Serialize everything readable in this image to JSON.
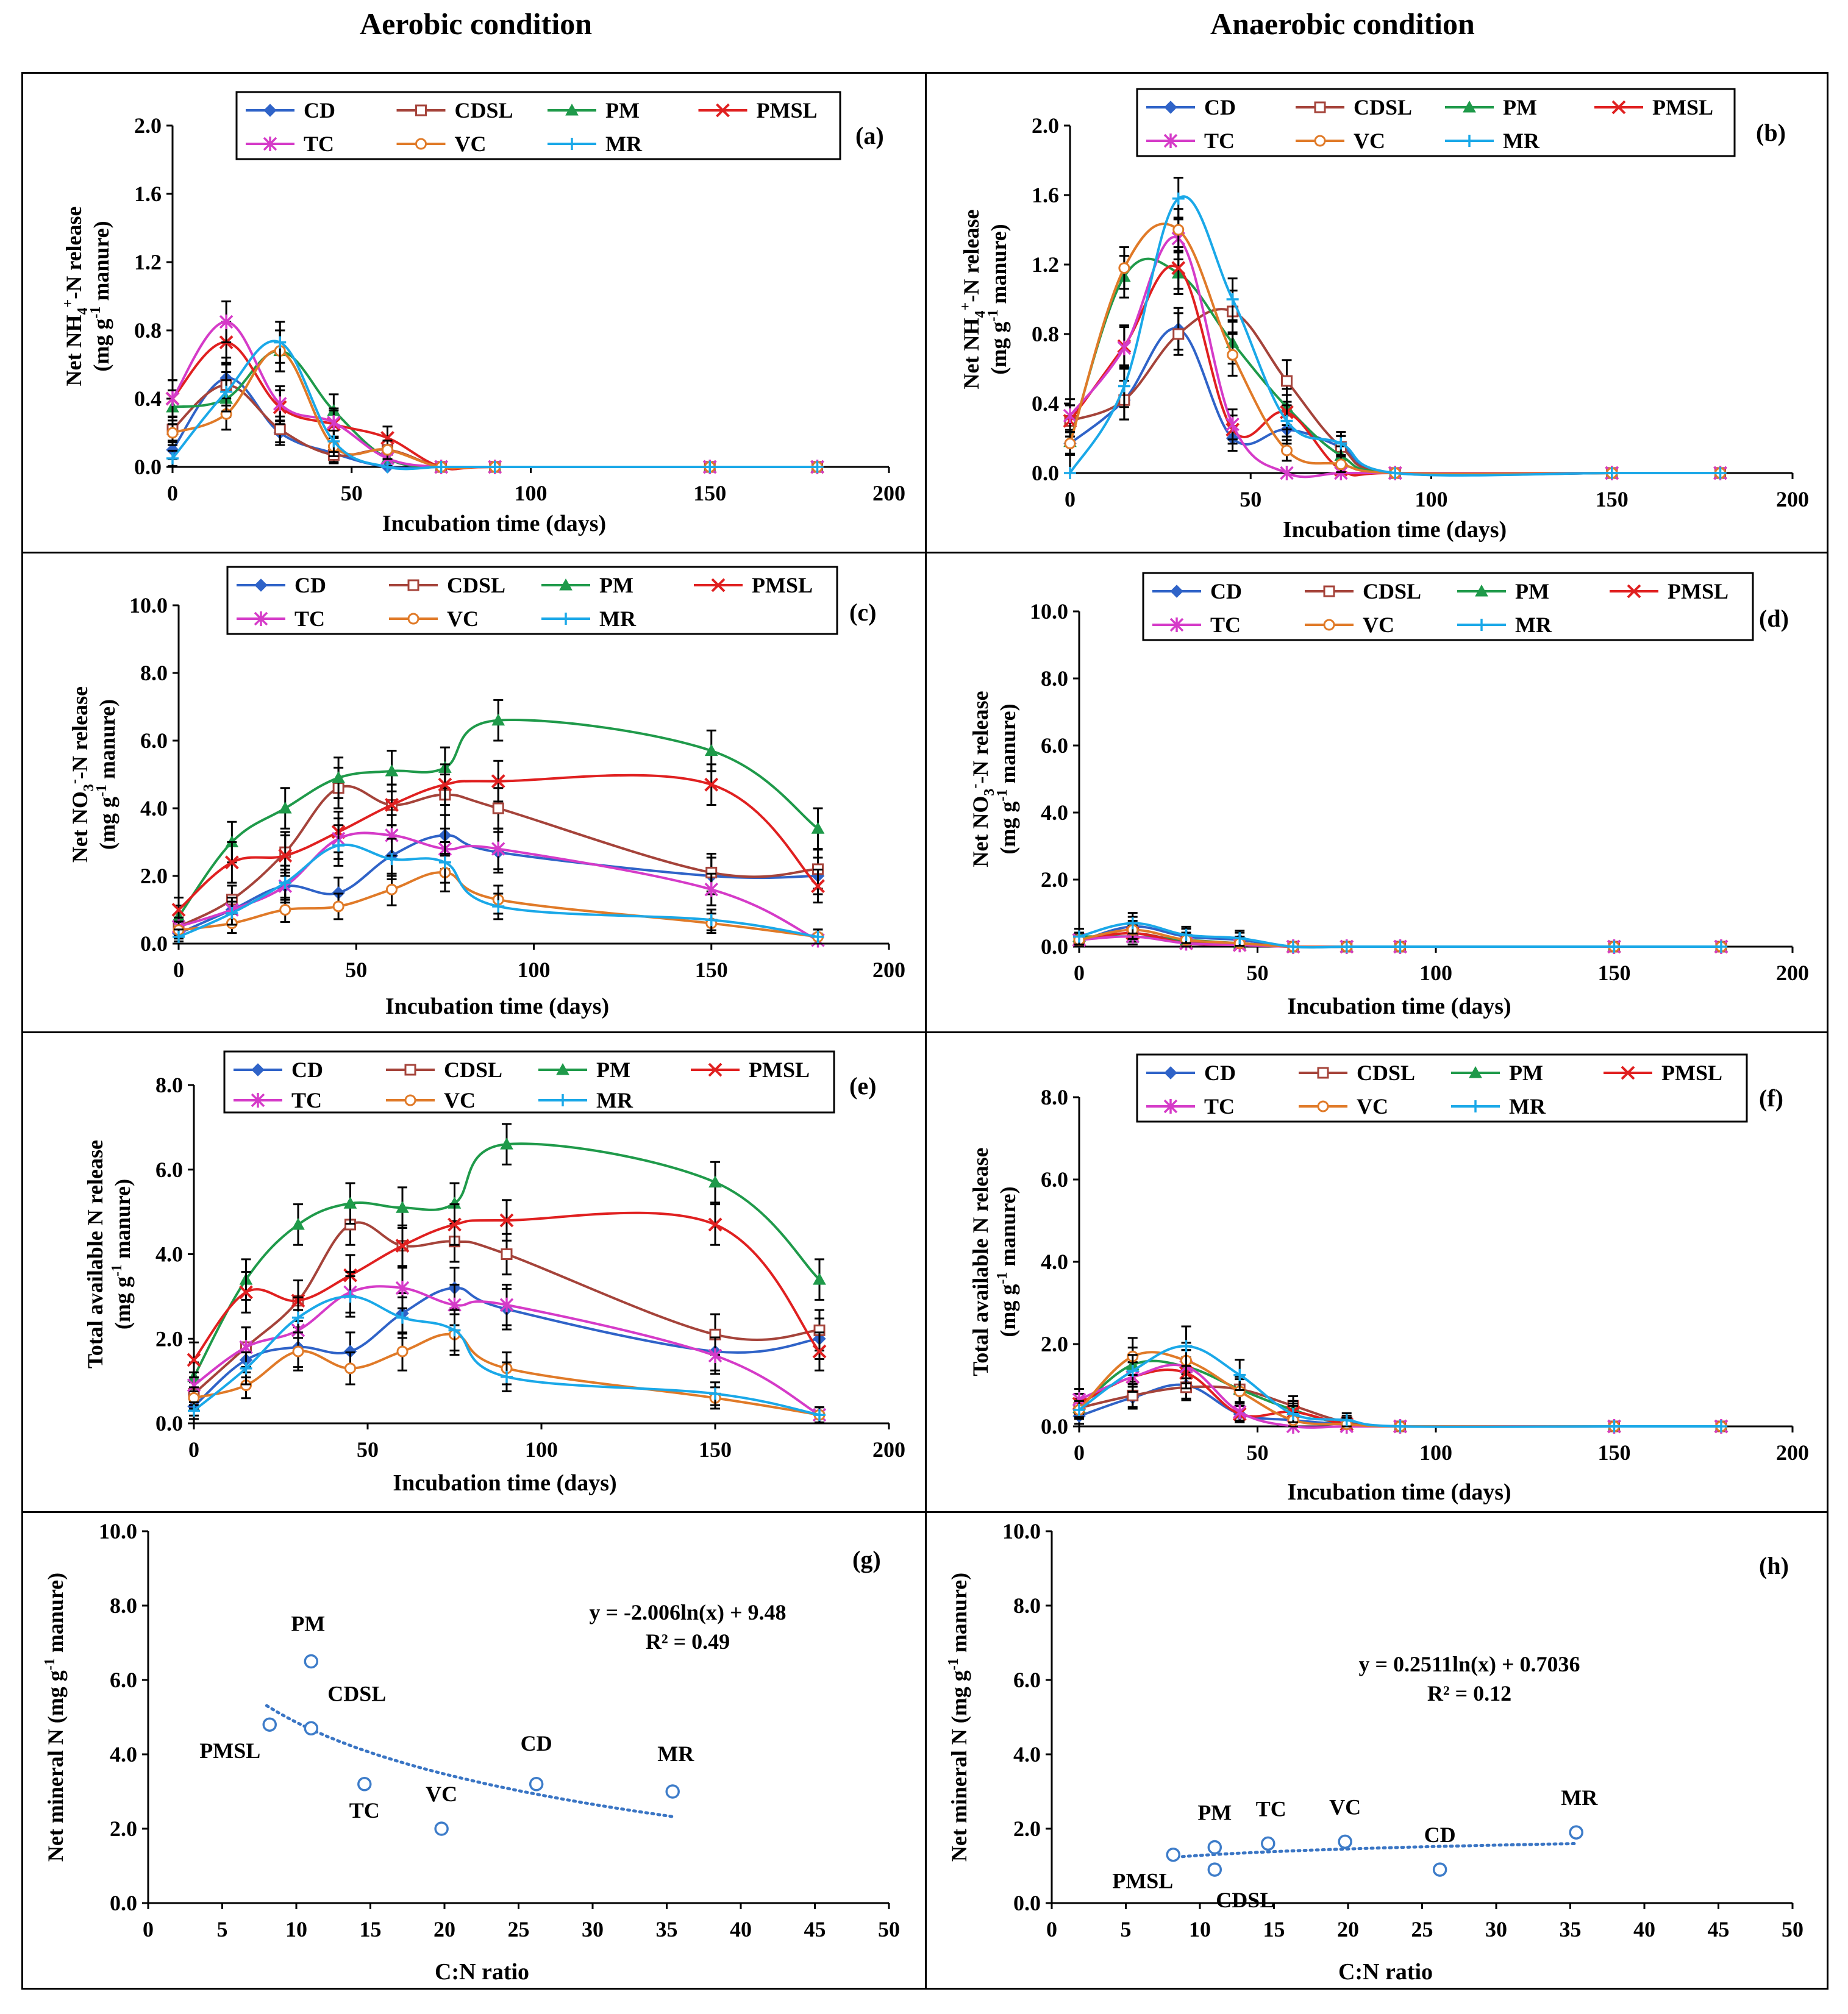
{
  "page": {
    "left_title": "Aerobic condition",
    "right_title": "Anaerobic condition"
  },
  "colors": {
    "CD": "#2f63c8",
    "CDSL": "#a5433a",
    "PM": "#1f9a4a",
    "PMSL": "#e02020",
    "TC": "#d53bc8",
    "VC": "#e07a28",
    "MR": "#1aa8e8",
    "trend": "#3a75c4",
    "points": "#3d7cc9"
  },
  "markers": {
    "CD": "diamond",
    "CDSL": "square",
    "PM": "triangle",
    "PMSL": "x",
    "TC": "star",
    "VC": "circle",
    "MR": "plus"
  },
  "chart_data": [
    {
      "id": "a",
      "panel_label": "(a)",
      "type": "line",
      "ylabel_parts": [
        "Net NH",
        "4",
        "+",
        "-N release"
      ],
      "ylabel2": "(mg g-1 manure)",
      "xlabel": "Incubation time (days)",
      "ylim": [
        0,
        2.0
      ],
      "yticks": [
        "0.0",
        "0.4",
        "0.8",
        "1.2",
        "1.6",
        "2.0"
      ],
      "xlim": [
        0,
        200
      ],
      "xticks": [
        "0",
        "50",
        "100",
        "150",
        "200"
      ],
      "x": [
        0,
        15,
        30,
        45,
        60,
        75,
        90,
        150,
        180
      ],
      "series": [
        {
          "name": "CD",
          "values": [
            0.1,
            0.52,
            0.2,
            0.08,
            0.0,
            0,
            0,
            0,
            0
          ]
        },
        {
          "name": "CDSL",
          "values": [
            0.22,
            0.48,
            0.22,
            0.07,
            0.1,
            0,
            0,
            0,
            0
          ]
        },
        {
          "name": "PM",
          "values": [
            0.35,
            0.4,
            0.68,
            0.33,
            0.05,
            0,
            0,
            0,
            0
          ]
        },
        {
          "name": "PMSL",
          "values": [
            0.4,
            0.73,
            0.35,
            0.25,
            0.17,
            0,
            0,
            0,
            0
          ]
        },
        {
          "name": "TC",
          "values": [
            0.4,
            0.85,
            0.37,
            0.26,
            0.05,
            0,
            0,
            0,
            0
          ]
        },
        {
          "name": "VC",
          "values": [
            0.2,
            0.31,
            0.68,
            0.12,
            0.1,
            0,
            0,
            0,
            0
          ]
        },
        {
          "name": "MR",
          "values": [
            0.05,
            0.44,
            0.73,
            0.15,
            0.0,
            0,
            0,
            0,
            0
          ]
        }
      ]
    },
    {
      "id": "b",
      "panel_label": "(b)",
      "type": "line",
      "ylabel_parts": [
        "Net NH",
        "4",
        "+",
        "-N release"
      ],
      "ylabel2": "(mg g-1 manure)",
      "xlabel": "Incubation time (days)",
      "ylim": [
        0,
        2.0
      ],
      "yticks": [
        "0.0",
        "0.4",
        "0.8",
        "1.2",
        "1.6",
        "2.0"
      ],
      "xlim": [
        0,
        200
      ],
      "xticks": [
        "0",
        "50",
        "100",
        "150",
        "200"
      ],
      "x": [
        0,
        15,
        30,
        45,
        60,
        75,
        90,
        150,
        180
      ],
      "series": [
        {
          "name": "CD",
          "values": [
            0.17,
            0.42,
            0.83,
            0.2,
            0.25,
            0.15,
            0,
            0,
            0
          ]
        },
        {
          "name": "CDSL",
          "values": [
            0.3,
            0.42,
            0.8,
            0.93,
            0.53,
            0.15,
            0,
            0,
            0
          ]
        },
        {
          "name": "PM",
          "values": [
            0.18,
            1.13,
            1.15,
            0.75,
            0.38,
            0.1,
            0,
            0,
            0
          ]
        },
        {
          "name": "PMSL",
          "values": [
            0.3,
            0.73,
            1.18,
            0.25,
            0.35,
            0.02,
            0,
            0,
            0
          ]
        },
        {
          "name": "TC",
          "values": [
            0.33,
            0.72,
            1.35,
            0.28,
            0.0,
            0,
            0,
            0,
            0
          ]
        },
        {
          "name": "VC",
          "values": [
            0.17,
            1.18,
            1.4,
            0.68,
            0.13,
            0.05,
            0,
            0,
            0
          ]
        },
        {
          "name": "MR",
          "values": [
            0.0,
            0.5,
            1.58,
            1.0,
            0.3,
            0.17,
            0,
            0,
            0
          ]
        }
      ]
    },
    {
      "id": "c",
      "panel_label": "(c)",
      "type": "line",
      "ylabel_parts": [
        "Net NO",
        "3",
        "-",
        "-N release"
      ],
      "ylabel2": "(mg g-1 manure)",
      "xlabel": "Incubation time (days)",
      "ylim": [
        0,
        10.0
      ],
      "yticks": [
        "0.0",
        "2.0",
        "4.0",
        "6.0",
        "8.0",
        "10.0"
      ],
      "xlim": [
        0,
        200
      ],
      "xticks": [
        "0",
        "50",
        "100",
        "150",
        "200"
      ],
      "x": [
        0,
        15,
        30,
        45,
        60,
        75,
        90,
        150,
        180
      ],
      "series": [
        {
          "name": "CD",
          "values": [
            0.3,
            1.0,
            1.7,
            1.5,
            2.6,
            3.2,
            2.7,
            2.0,
            2.0
          ]
        },
        {
          "name": "CDSL",
          "values": [
            0.5,
            1.3,
            2.7,
            4.6,
            4.1,
            4.4,
            4.0,
            2.1,
            2.2
          ]
        },
        {
          "name": "PM",
          "values": [
            0.8,
            3.0,
            4.0,
            4.9,
            5.1,
            5.2,
            6.6,
            5.7,
            3.4
          ]
        },
        {
          "name": "PMSL",
          "values": [
            1.0,
            2.4,
            2.6,
            3.3,
            4.1,
            4.7,
            4.8,
            4.7,
            1.7
          ]
        },
        {
          "name": "TC",
          "values": [
            0.5,
            1.0,
            1.7,
            3.1,
            3.2,
            2.8,
            2.8,
            1.6,
            0.1
          ]
        },
        {
          "name": "VC",
          "values": [
            0.4,
            0.6,
            1.0,
            1.1,
            1.6,
            2.1,
            1.3,
            0.6,
            0.2
          ]
        },
        {
          "name": "MR",
          "values": [
            0.2,
            0.9,
            1.8,
            2.9,
            2.5,
            2.4,
            1.1,
            0.7,
            0.2
          ]
        }
      ]
    },
    {
      "id": "d",
      "panel_label": "(d)",
      "type": "line",
      "ylabel_parts": [
        "Net NO",
        "3",
        "-",
        "-N release"
      ],
      "ylabel2": "(mg g-1 manure)",
      "xlabel": "Incubation time (days)",
      "ylim": [
        0,
        10.0
      ],
      "yticks": [
        "0.0",
        "2.0",
        "4.0",
        "6.0",
        "8.0",
        "10.0"
      ],
      "xlim": [
        0,
        200
      ],
      "xticks": [
        "0",
        "50",
        "100",
        "150",
        "200"
      ],
      "x": [
        0,
        15,
        30,
        45,
        60,
        75,
        90,
        150,
        180
      ],
      "series": [
        {
          "name": "CD",
          "values": [
            0.15,
            0.6,
            0.3,
            0.2,
            0,
            0,
            0,
            0,
            0
          ]
        },
        {
          "name": "CDSL",
          "values": [
            0.2,
            0.4,
            0.15,
            0.1,
            0,
            0,
            0,
            0,
            0
          ]
        },
        {
          "name": "PM",
          "values": [
            0.3,
            0.3,
            0.2,
            0.1,
            0,
            0,
            0,
            0,
            0
          ]
        },
        {
          "name": "PMSL",
          "values": [
            0.2,
            0.4,
            0.1,
            0.05,
            0,
            0,
            0,
            0,
            0
          ]
        },
        {
          "name": "TC",
          "values": [
            0.2,
            0.3,
            0.1,
            0.05,
            0,
            0,
            0,
            0,
            0
          ]
        },
        {
          "name": "VC",
          "values": [
            0.2,
            0.5,
            0.2,
            0.1,
            0,
            0,
            0,
            0,
            0
          ]
        },
        {
          "name": "MR",
          "values": [
            0.3,
            0.7,
            0.35,
            0.25,
            0,
            0,
            0,
            0,
            0
          ]
        }
      ]
    },
    {
      "id": "e",
      "panel_label": "(e)",
      "type": "line",
      "ylabel_parts": [
        "Total available N release"
      ],
      "ylabel2": "(mg g-1 manure)",
      "xlabel": "Incubation time (days)",
      "ylim": [
        0,
        8.0
      ],
      "yticks": [
        "0.0",
        "2.0",
        "4.0",
        "6.0",
        "8.0"
      ],
      "xlim": [
        0,
        200
      ],
      "xticks": [
        "0",
        "50",
        "100",
        "150",
        "200"
      ],
      "x": [
        0,
        15,
        30,
        45,
        60,
        75,
        90,
        150,
        180
      ],
      "series": [
        {
          "name": "CD",
          "values": [
            0.4,
            1.5,
            1.8,
            1.7,
            2.6,
            3.2,
            2.7,
            1.7,
            2.0
          ]
        },
        {
          "name": "CDSL",
          "values": [
            0.7,
            1.8,
            2.9,
            4.7,
            4.2,
            4.3,
            4.0,
            2.1,
            2.2
          ]
        },
        {
          "name": "PM",
          "values": [
            1.1,
            3.4,
            4.7,
            5.2,
            5.1,
            5.2,
            6.6,
            5.7,
            3.4
          ]
        },
        {
          "name": "PMSL",
          "values": [
            1.5,
            3.1,
            2.9,
            3.5,
            4.2,
            4.7,
            4.8,
            4.7,
            1.7
          ]
        },
        {
          "name": "TC",
          "values": [
            0.9,
            1.8,
            2.2,
            3.1,
            3.2,
            2.8,
            2.8,
            1.6,
            0.2
          ]
        },
        {
          "name": "VC",
          "values": [
            0.6,
            0.9,
            1.7,
            1.3,
            1.7,
            2.1,
            1.3,
            0.6,
            0.2
          ]
        },
        {
          "name": "MR",
          "values": [
            0.3,
            1.3,
            2.5,
            3.0,
            2.5,
            2.2,
            1.1,
            0.7,
            0.2
          ]
        }
      ]
    },
    {
      "id": "f",
      "panel_label": "(f)",
      "type": "line",
      "ylabel_parts": [
        "Total available N release"
      ],
      "ylabel2": "(mg g-1 manure)",
      "xlabel": "Incubation time (days)",
      "ylim": [
        0,
        8.0
      ],
      "yticks": [
        "0.0",
        "2.0",
        "4.0",
        "6.0",
        "8.0"
      ],
      "xlim": [
        0,
        200
      ],
      "xticks": [
        "0",
        "50",
        "100",
        "150",
        "200"
      ],
      "x": [
        0,
        15,
        30,
        45,
        60,
        75,
        90,
        150,
        180
      ],
      "series": [
        {
          "name": "CD",
          "values": [
            0.25,
            0.7,
            1.0,
            0.3,
            0.15,
            0.05,
            0,
            0,
            0
          ]
        },
        {
          "name": "CDSL",
          "values": [
            0.45,
            0.75,
            0.95,
            0.9,
            0.5,
            0.1,
            0,
            0,
            0
          ]
        },
        {
          "name": "PM",
          "values": [
            0.45,
            1.5,
            1.45,
            0.9,
            0.4,
            0.05,
            0,
            0,
            0
          ]
        },
        {
          "name": "PMSL",
          "values": [
            0.55,
            1.2,
            1.3,
            0.3,
            0.35,
            0.05,
            0,
            0,
            0
          ]
        },
        {
          "name": "TC",
          "values": [
            0.65,
            1.2,
            1.45,
            0.35,
            0.0,
            0,
            0,
            0,
            0
          ]
        },
        {
          "name": "VC",
          "values": [
            0.4,
            1.7,
            1.6,
            0.85,
            0.15,
            0.05,
            0,
            0,
            0
          ]
        },
        {
          "name": "MR",
          "values": [
            0.4,
            1.35,
            1.95,
            1.25,
            0.3,
            0.15,
            0,
            0,
            0
          ]
        }
      ]
    },
    {
      "id": "g",
      "panel_label": "(g)",
      "type": "scatter",
      "ylabel": "Net mineral N (mg g-1 manure)",
      "xlabel": "C:N ratio",
      "ylim": [
        0,
        10.0
      ],
      "yticks": [
        "0.0",
        "2.0",
        "4.0",
        "6.0",
        "8.0",
        "10.0"
      ],
      "xlim": [
        0,
        50
      ],
      "xticks": [
        "0",
        "5",
        "10",
        "15",
        "20",
        "25",
        "30",
        "35",
        "40",
        "45",
        "50"
      ],
      "points": [
        {
          "label": "PM",
          "x": 11.0,
          "y": 6.5
        },
        {
          "label": "CDSL",
          "x": 11.0,
          "y": 4.7
        },
        {
          "label": "PMSL",
          "x": 8.2,
          "y": 4.8
        },
        {
          "label": "TC",
          "x": 14.6,
          "y": 3.2
        },
        {
          "label": "VC",
          "x": 19.8,
          "y": 2.0
        },
        {
          "label": "CD",
          "x": 26.2,
          "y": 3.2
        },
        {
          "label": "MR",
          "x": 35.4,
          "y": 3.0
        }
      ],
      "trend": {
        "a": -2.006,
        "b": 9.48,
        "xrange": [
          8,
          35.4
        ]
      },
      "equation": "y = -2.006ln(x) + 9.48",
      "r2": "R² = 0.49"
    },
    {
      "id": "h",
      "panel_label": "(h)",
      "type": "scatter",
      "ylabel": "Net mineral N (mg g-1 manure)",
      "xlabel": "C:N ratio",
      "ylim": [
        0,
        10.0
      ],
      "yticks": [
        "0.0",
        "2.0",
        "4.0",
        "6.0",
        "8.0",
        "10.0"
      ],
      "xlim": [
        0,
        50
      ],
      "xticks": [
        "0",
        "5",
        "10",
        "15",
        "20",
        "25",
        "30",
        "35",
        "40",
        "45",
        "50"
      ],
      "points": [
        {
          "label": "PMSL",
          "x": 8.2,
          "y": 1.3
        },
        {
          "label": "PM",
          "x": 11.0,
          "y": 1.5
        },
        {
          "label": "CDSL",
          "x": 11.0,
          "y": 0.9
        },
        {
          "label": "TC",
          "x": 14.6,
          "y": 1.6
        },
        {
          "label": "VC",
          "x": 19.8,
          "y": 1.65
        },
        {
          "label": "CD",
          "x": 26.2,
          "y": 0.9
        },
        {
          "label": "MR",
          "x": 35.4,
          "y": 1.9
        }
      ],
      "trend": {
        "a": 0.2511,
        "b": 0.7036,
        "xrange": [
          8,
          35.4
        ]
      },
      "equation": "y = 0.2511ln(x) + 0.7036",
      "r2": "R² = 0.12"
    }
  ]
}
